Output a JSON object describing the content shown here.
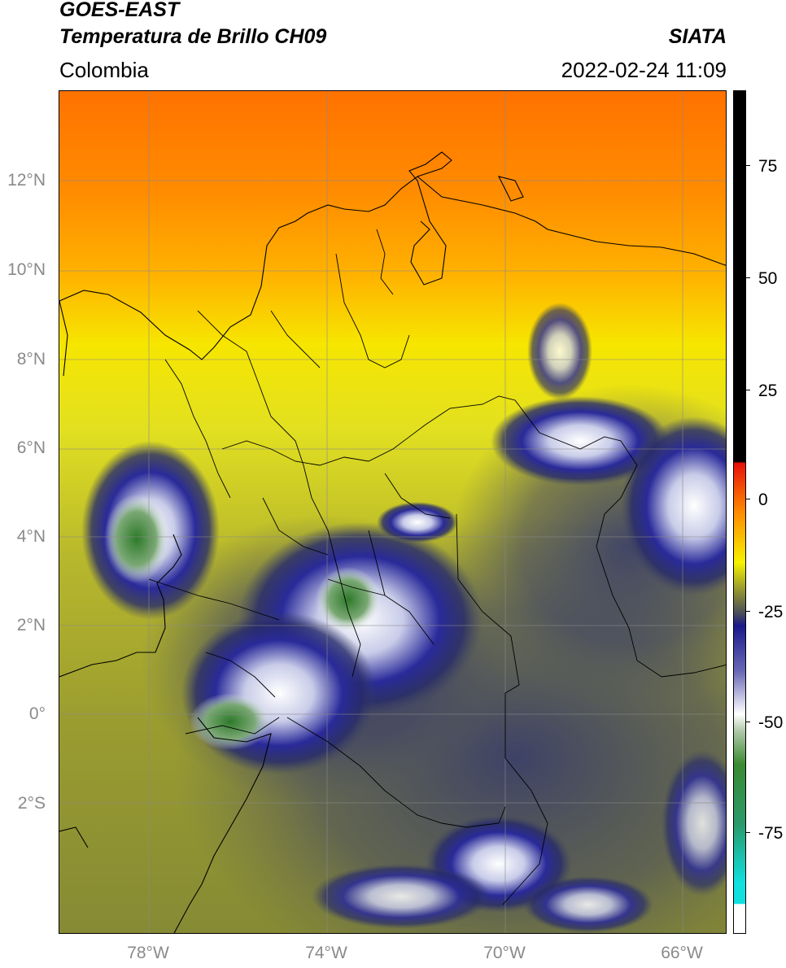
{
  "header": {
    "satellite": "GOES-EAST",
    "product": "Temperatura de Brillo CH09",
    "brand": "SIATA",
    "region": "Colombia",
    "datetime": "2022-02-24 11:09"
  },
  "map": {
    "lon_range": [
      -80,
      -65
    ],
    "lat_range": [
      -5,
      14
    ],
    "lat_labels": [
      "12°N",
      "10°N",
      "8°N",
      "6°N",
      "4°N",
      "2°N",
      "0°",
      "2°S"
    ],
    "lon_labels": [
      "78°W",
      "74°W",
      "70°W",
      "66°W"
    ],
    "gridlines": true
  },
  "colorbar": {
    "tick_labels": [
      "75",
      "50",
      "25",
      "0",
      "-25",
      "-50",
      "-75"
    ],
    "range": [
      -95,
      90
    ],
    "colors": {
      "black": "#000000",
      "red": "#e8120a",
      "orange": "#ff8a00",
      "yellow": "#f6f200",
      "olive": "#9c9d2e",
      "slate": "#4a4e58",
      "navy": "#1a1a8a",
      "white": "#ffffff",
      "green": "#3a8a32",
      "cyan": "#10e0e0"
    }
  }
}
